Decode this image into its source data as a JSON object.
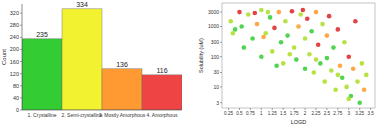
{
  "chart_data": [
    {
      "type": "bar",
      "y_label": "Count",
      "categories": [
        "1. Crystalline",
        "2. Semi-crystalline",
        "3. Mostly Amorphous",
        "4. Amorphous"
      ],
      "values": [
        235,
        334,
        136,
        116
      ],
      "colors": [
        "#33cc33",
        "#f2f230",
        "#ff9a33",
        "#ee4444"
      ],
      "ylim": [
        0,
        350
      ],
      "yticks": [
        0,
        40,
        80,
        120,
        160,
        200,
        240,
        280,
        320
      ],
      "data_labels": true,
      "grid": false
    },
    {
      "type": "scatter",
      "x_label": "LOGD",
      "y_label": "Solubility (uM)",
      "log": "y",
      "grid": false,
      "marker": "circle",
      "x": [
        0.3,
        0.4,
        0.5,
        0.6,
        0.7,
        0.8,
        0.9,
        1.0,
        1.0,
        1.1,
        1.2,
        1.25,
        1.3,
        1.4,
        1.45,
        1.5,
        1.55,
        1.6,
        1.7,
        1.75,
        1.8,
        1.85,
        1.9,
        2.0,
        2.0,
        2.05,
        2.1,
        2.15,
        2.2,
        2.25,
        2.3,
        2.35,
        2.4,
        2.45,
        2.5,
        2.5,
        2.55,
        2.6,
        2.65,
        2.7,
        2.75,
        2.8,
        2.85,
        2.9,
        2.95,
        3.0,
        3.05,
        3.1,
        3.15,
        3.2,
        3.25,
        3.3,
        3.35,
        3.4,
        0.35,
        0.55,
        0.85,
        1.15,
        1.35,
        1.65,
        1.95,
        2.25,
        2.75,
        3.0,
        1.05
      ],
      "values": [
        1500,
        800,
        3000,
        200,
        2500,
        400,
        1200,
        3500,
        100,
        600,
        2000,
        150,
        900,
        3000,
        300,
        60,
        1500,
        500,
        3200,
        200,
        80,
        1000,
        2500,
        40,
        400,
        1800,
        120,
        700,
        30,
        3000,
        250,
        60,
        1200,
        15,
        500,
        90,
        2200,
        35,
        200,
        8,
        800,
        50,
        20,
        300,
        10,
        100,
        5,
        40,
        1500,
        15,
        3,
        60,
        8,
        25,
        600,
        1000,
        2800,
        3000,
        50,
        120,
        3500,
        80,
        25,
        4,
        450
      ],
      "colors": [
        "#aadd22",
        "#33cc33",
        "#dd2222",
        "#33cc33",
        "#aadd22",
        "#33cc33",
        "#ff9922",
        "#aadd22",
        "#33cc33",
        "#aadd22",
        "#33cc33",
        "#aadd22",
        "#dd2222",
        "#ff9922",
        "#33cc33",
        "#aadd22",
        "#aadd22",
        "#33cc33",
        "#dd2222",
        "#aadd22",
        "#33cc33",
        "#ff9922",
        "#aadd22",
        "#33cc33",
        "#aadd22",
        "#dd2222",
        "#aadd22",
        "#33cc33",
        "#aadd22",
        "#ff9922",
        "#dd2222",
        "#33cc33",
        "#aadd22",
        "#aadd22",
        "#ff9922",
        "#33cc33",
        "#dd2222",
        "#aadd22",
        "#33cc33",
        "#aadd22",
        "#dd2222",
        "#ff9922",
        "#33cc33",
        "#aadd22",
        "#aadd22",
        "#dd2222",
        "#33cc33",
        "#ff9922",
        "#dd2222",
        "#aadd22",
        "#33cc33",
        "#aadd22",
        "#ff9922",
        "#aadd22",
        "#aadd22",
        "#33cc33",
        "#dd2222",
        "#aadd22",
        "#33cc33",
        "#aadd22",
        "#dd2222",
        "#aadd22",
        "#aadd22",
        "#aadd22",
        "#ff9922"
      ],
      "xlim": [
        0.1,
        3.6
      ],
      "xticks": [
        0.25,
        0.5,
        0.75,
        1,
        1.25,
        1.5,
        1.75,
        2,
        2.25,
        2.5,
        2.75,
        3,
        3.25,
        3.5
      ],
      "ylim": [
        2,
        6000
      ],
      "yticks": [
        3,
        10,
        30,
        100,
        300,
        1000,
        3000
      ]
    }
  ]
}
